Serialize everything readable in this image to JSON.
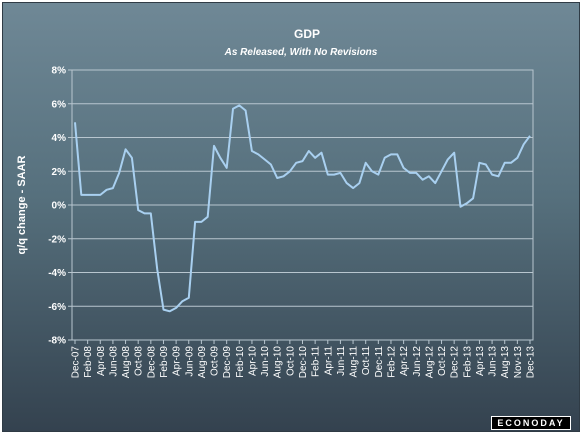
{
  "chart_data": {
    "type": "line",
    "title": "GDP",
    "subtitle": "As Released, With No Revisions",
    "ylabel": "q/q change - SAAR",
    "xlabel": "",
    "ylim": [
      -8,
      8
    ],
    "yticks": [
      -8,
      -6,
      -4,
      -2,
      0,
      2,
      4,
      6,
      8
    ],
    "ytick_labels": [
      "-8%",
      "-6%",
      "-4%",
      "-2%",
      "0%",
      "2%",
      "4%",
      "6%",
      "8%"
    ],
    "grid": true,
    "line_color": "#a9d0f0",
    "x_tick_labels": [
      "Dec-07",
      "Feb-08",
      "Apr-08",
      "Jun-08",
      "Aug-08",
      "Oct-08",
      "Dec-08",
      "Feb-09",
      "Apr-09",
      "Jun-09",
      "Aug-09",
      "Oct-09",
      "Dec-09",
      "Feb-10",
      "Apr-10",
      "Jun-10",
      "Aug-10",
      "Oct-10",
      "Dec-10",
      "Feb-11",
      "Apr-11",
      "Jun-11",
      "Aug-11",
      "Oct-11",
      "Dec-11",
      "Feb-12",
      "Apr-12",
      "Jun-12",
      "Aug-12",
      "Oct-12",
      "Dec-12",
      "Feb-13",
      "Apr-13",
      "Jun-13",
      "Aug-13",
      "Nov-13",
      "Dec-13"
    ],
    "series": [
      {
        "values": [
          4.9,
          0.6,
          0.6,
          0.6,
          0.6,
          0.9,
          1.0,
          1.9,
          3.3,
          2.8,
          -0.3,
          -0.5,
          -0.5,
          -3.8,
          -6.2,
          -6.3,
          -6.1,
          -5.7,
          -5.5,
          -1.0,
          -1.0,
          -0.7,
          3.5,
          2.8,
          2.2,
          5.7,
          5.9,
          5.6,
          3.2,
          3.0,
          2.7,
          2.4,
          1.6,
          1.7,
          2.0,
          2.5,
          2.6,
          3.2,
          2.8,
          3.1,
          1.8,
          1.8,
          1.9,
          1.3,
          1.0,
          1.3,
          2.5,
          2.0,
          1.8,
          2.8,
          3.0,
          3.0,
          2.2,
          1.9,
          1.9,
          1.5,
          1.7,
          1.3,
          2.0,
          2.7,
          3.1,
          -0.1,
          0.1,
          0.4,
          2.5,
          2.4,
          1.8,
          1.7,
          2.5,
          2.5,
          2.8,
          3.6,
          4.1
        ]
      }
    ]
  },
  "branding": {
    "logo_text": "ECONODAY"
  }
}
